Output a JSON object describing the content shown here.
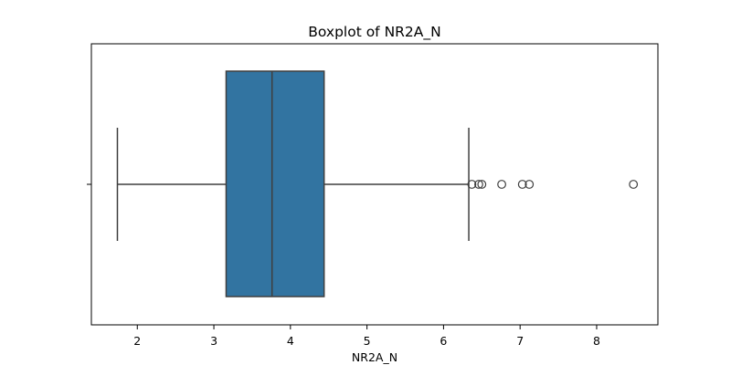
{
  "chart_data": {
    "type": "boxplot",
    "title": "Boxplot of NR2A_N",
    "xlabel": "NR2A_N",
    "ylabel": "",
    "orientation": "horizontal",
    "xlim": [
      1.4,
      8.8
    ],
    "x_ticks": [
      2,
      3,
      4,
      5,
      6,
      7,
      8
    ],
    "grid": false,
    "box": {
      "whisker_low": 1.74,
      "q1": 3.16,
      "median": 3.76,
      "q3": 4.44,
      "whisker_high": 6.33,
      "outliers": [
        6.37,
        6.46,
        6.5,
        6.76,
        7.03,
        7.12,
        8.48
      ]
    },
    "colors": {
      "box_fill": "#3274a1",
      "line": "#3f3f3f"
    }
  }
}
